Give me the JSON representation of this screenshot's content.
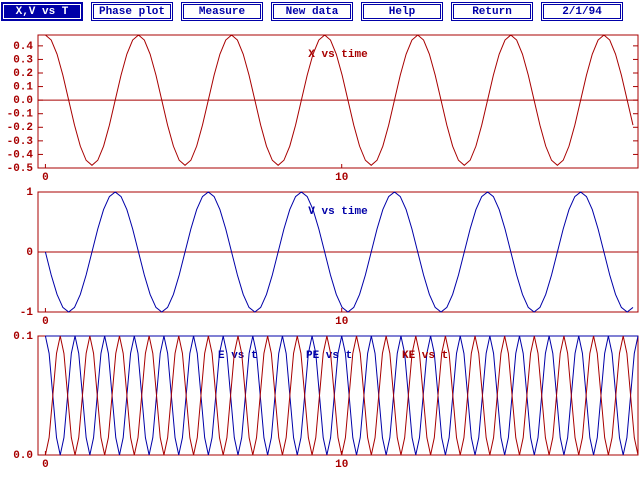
{
  "menu": {
    "buttons": [
      {
        "label": "X,V vs T",
        "selected": true
      },
      {
        "label": "Phase plot"
      },
      {
        "label": "Measure"
      },
      {
        "label": "New data"
      },
      {
        "label": "Help"
      },
      {
        "label": "Return"
      },
      {
        "label": "2/1/94"
      }
    ]
  },
  "chart_data": [
    {
      "type": "line",
      "title": "X vs time",
      "title_color": "#a80000",
      "color": "#a80000",
      "xlim": [
        -0.25,
        20
      ],
      "xticks": [
        0,
        10
      ],
      "ylim": [
        -0.5,
        0.48
      ],
      "yticks": [
        0.4,
        0.3,
        0.2,
        0.1,
        {
          "value": 0,
          "label": "0.0"
        },
        -0.1,
        -0.2,
        -0.3,
        -0.4,
        -0.5
      ],
      "zero_line": true,
      "x": [
        0,
        0.196,
        0.393,
        0.589,
        0.785,
        0.982,
        1.178,
        1.374,
        1.571,
        1.767,
        1.963,
        2.16,
        2.356,
        2.553,
        2.749,
        2.945,
        3.142,
        3.338,
        3.534,
        3.731,
        3.927,
        4.123,
        4.32,
        4.516,
        4.712,
        4.909,
        5.105,
        5.301,
        5.498,
        5.694,
        5.89,
        6.087,
        6.283,
        6.48,
        6.676,
        6.872,
        7.069,
        7.265,
        7.461,
        7.658,
        7.854,
        8.05,
        8.247,
        8.443,
        8.639,
        8.836,
        9.032,
        9.228,
        9.425,
        9.621,
        9.817,
        10.014,
        10.21,
        10.407,
        10.603,
        10.799,
        10.996,
        11.192,
        11.388,
        11.585,
        11.781,
        11.977,
        12.174,
        12.37,
        12.566,
        12.763,
        12.959,
        13.155,
        13.352,
        13.548,
        13.744,
        13.941,
        14.137,
        14.334,
        14.53,
        14.726,
        14.923,
        15.119,
        15.315,
        15.512,
        15.708,
        15.904,
        16.101,
        16.297,
        16.493,
        16.69,
        16.886,
        17.082,
        17.279,
        17.475,
        17.671,
        17.868,
        18.064,
        18.261,
        18.457,
        18.653,
        18.85,
        19.046,
        19.242,
        19.439,
        19.635,
        19.831
      ],
      "values": [
        0.48,
        0.443,
        0.339,
        0.184,
        0,
        -0.184,
        -0.339,
        -0.443,
        -0.48,
        -0.443,
        -0.339,
        -0.184,
        0,
        0.184,
        0.339,
        0.443,
        0.48,
        0.443,
        0.339,
        0.184,
        0,
        -0.184,
        -0.339,
        -0.443,
        -0.48,
        -0.443,
        -0.339,
        -0.184,
        0,
        0.184,
        0.339,
        0.443,
        0.48,
        0.443,
        0.339,
        0.184,
        0,
        -0.184,
        -0.339,
        -0.443,
        -0.48,
        -0.443,
        -0.339,
        -0.184,
        0,
        0.184,
        0.339,
        0.443,
        0.48,
        0.443,
        0.339,
        0.184,
        0,
        -0.184,
        -0.339,
        -0.443,
        -0.48,
        -0.443,
        -0.339,
        -0.184,
        0,
        0.184,
        0.339,
        0.443,
        0.48,
        0.443,
        0.339,
        0.184,
        0,
        -0.184,
        -0.339,
        -0.443,
        -0.48,
        -0.443,
        -0.339,
        -0.184,
        0,
        0.184,
        0.339,
        0.443,
        0.48,
        0.443,
        0.339,
        0.184,
        0,
        -0.184,
        -0.339,
        -0.443,
        -0.48,
        -0.443,
        -0.339,
        -0.184,
        0,
        0.184,
        0.339,
        0.443,
        0.48,
        0.443,
        0.339,
        0.184,
        0,
        -0.184
      ]
    },
    {
      "type": "line",
      "title": "V vs time",
      "title_color": "#0000a8",
      "color": "#0000a8",
      "xlim": [
        -0.25,
        20
      ],
      "xticks": [
        0,
        10
      ],
      "ylim": [
        -1,
        1
      ],
      "yticks": [
        1,
        0,
        -1
      ],
      "zero_line": true,
      "x": [
        0,
        0.196,
        0.393,
        0.589,
        0.785,
        0.982,
        1.178,
        1.374,
        1.571,
        1.767,
        1.963,
        2.16,
        2.356,
        2.553,
        2.749,
        2.945,
        3.142,
        3.338,
        3.534,
        3.731,
        3.927,
        4.123,
        4.32,
        4.516,
        4.712,
        4.909,
        5.105,
        5.301,
        5.498,
        5.694,
        5.89,
        6.087,
        6.283,
        6.48,
        6.676,
        6.872,
        7.069,
        7.265,
        7.461,
        7.658,
        7.854,
        8.05,
        8.247,
        8.443,
        8.639,
        8.836,
        9.032,
        9.228,
        9.425,
        9.621,
        9.817,
        10.014,
        10.21,
        10.407,
        10.603,
        10.799,
        10.996,
        11.192,
        11.388,
        11.585,
        11.781,
        11.977,
        12.174,
        12.37,
        12.566,
        12.763,
        12.959,
        13.155,
        13.352,
        13.548,
        13.744,
        13.941,
        14.137,
        14.334,
        14.53,
        14.726,
        14.923,
        15.119,
        15.315,
        15.512,
        15.708,
        15.904,
        16.101,
        16.297,
        16.493,
        16.69,
        16.886,
        17.082,
        17.279,
        17.475,
        17.671,
        17.868,
        18.064,
        18.261,
        18.457,
        18.653,
        18.85,
        19.046,
        19.242,
        19.439,
        19.635,
        19.831
      ],
      "values": [
        0,
        -0.383,
        -0.707,
        -0.924,
        -1,
        -0.924,
        -0.707,
        -0.383,
        0,
        0.383,
        0.707,
        0.924,
        1,
        0.924,
        0.707,
        0.383,
        0,
        -0.383,
        -0.707,
        -0.924,
        -1,
        -0.924,
        -0.707,
        -0.383,
        0,
        0.383,
        0.707,
        0.924,
        1,
        0.924,
        0.707,
        0.383,
        0,
        -0.383,
        -0.707,
        -0.924,
        -1,
        -0.924,
        -0.707,
        -0.383,
        0,
        0.383,
        0.707,
        0.924,
        1,
        0.924,
        0.707,
        0.383,
        0,
        -0.383,
        -0.707,
        -0.924,
        -1,
        -0.924,
        -0.707,
        -0.383,
        0,
        0.383,
        0.707,
        0.924,
        1,
        0.924,
        0.707,
        0.383,
        0,
        -0.383,
        -0.707,
        -0.924,
        -1,
        -0.924,
        -0.707,
        -0.383,
        0,
        0.383,
        0.707,
        0.924,
        1,
        0.924,
        0.707,
        0.383,
        0,
        -0.383,
        -0.707,
        -0.924,
        -1,
        -0.924,
        -0.707,
        -0.383,
        0,
        0.383,
        0.707,
        0.924,
        1,
        0.924,
        0.707,
        0.383,
        0,
        -0.383,
        -0.707,
        -0.924,
        -1,
        -0.924
      ]
    },
    {
      "type": "line",
      "xlim": [
        -0.25,
        20
      ],
      "xticks": [
        0,
        10
      ],
      "ylim": [
        0,
        0.1
      ],
      "yticks": [
        0.1,
        {
          "value": 0,
          "label": "0.0"
        }
      ],
      "x": [
        0,
        0.125,
        0.25,
        0.375,
        0.5,
        0.625,
        0.75,
        0.875,
        1,
        1.125,
        1.25,
        1.375,
        1.5,
        1.625,
        1.75,
        1.875,
        2,
        2.125,
        2.25,
        2.375,
        2.5,
        2.625,
        2.75,
        2.875,
        3,
        3.125,
        3.25,
        3.375,
        3.5,
        3.625,
        3.75,
        3.875,
        4,
        4.125,
        4.25,
        4.375,
        4.5,
        4.625,
        4.75,
        4.875,
        5,
        5.125,
        5.25,
        5.375,
        5.5,
        5.625,
        5.75,
        5.875,
        6,
        6.125,
        6.25,
        6.375,
        6.5,
        6.625,
        6.75,
        6.875,
        7,
        7.125,
        7.25,
        7.375,
        7.5,
        7.625,
        7.75,
        7.875,
        8,
        8.125,
        8.25,
        8.375,
        8.5,
        8.625,
        8.75,
        8.875,
        9,
        9.125,
        9.25,
        9.375,
        9.5,
        9.625,
        9.75,
        9.875,
        10,
        10.125,
        10.25,
        10.375,
        10.5,
        10.625,
        10.75,
        10.875,
        11,
        11.125,
        11.25,
        11.375,
        11.5,
        11.625,
        11.75,
        11.875,
        12,
        12.125,
        12.25,
        12.375,
        12.5,
        12.625,
        12.75,
        12.875,
        13,
        13.125,
        13.25,
        13.375,
        13.5,
        13.625,
        13.75,
        13.875,
        14,
        14.125,
        14.25,
        14.375,
        14.5,
        14.625,
        14.75,
        14.875,
        15,
        15.125,
        15.25,
        15.375,
        15.5,
        15.625,
        15.75,
        15.875,
        16,
        16.125,
        16.25,
        16.375,
        16.5,
        16.625,
        16.75,
        16.875,
        17,
        17.125,
        17.25,
        17.375,
        17.5,
        17.625,
        17.75,
        17.875,
        18,
        18.125,
        18.25,
        18.375,
        18.5,
        18.625,
        18.75,
        18.875,
        19,
        19.125,
        19.25,
        19.375,
        19.5,
        19.625,
        19.75,
        19.875,
        20
      ],
      "series": [
        {
          "name": "E vs t",
          "color": "#0000a8",
          "x": [
            0,
            20
          ],
          "values": [
            0.1,
            0.1
          ]
        },
        {
          "name": "PE vs t",
          "color": "#0000a8",
          "values": [
            0.1,
            0.0854,
            0.05,
            0.0146,
            0,
            0.0146,
            0.05,
            0.0854,
            0.1,
            0.0854,
            0.05,
            0.0146,
            0,
            0.0146,
            0.05,
            0.0854,
            0.1,
            0.0854,
            0.05,
            0.0146,
            0,
            0.0146,
            0.05,
            0.0854,
            0.1,
            0.0854,
            0.05,
            0.0146,
            0,
            0.0146,
            0.05,
            0.0854,
            0.1,
            0.0854,
            0.05,
            0.0146,
            0,
            0.0146,
            0.05,
            0.0854,
            0.1,
            0.0854,
            0.05,
            0.0146,
            0,
            0.0146,
            0.05,
            0.0854,
            0.1,
            0.0854,
            0.05,
            0.0146,
            0,
            0.0146,
            0.05,
            0.0854,
            0.1,
            0.0854,
            0.05,
            0.0146,
            0,
            0.0146,
            0.05,
            0.0854,
            0.1,
            0.0854,
            0.05,
            0.0146,
            0,
            0.0146,
            0.05,
            0.0854,
            0.1,
            0.0854,
            0.05,
            0.0146,
            0,
            0.0146,
            0.05,
            0.0854,
            0.1,
            0.0854,
            0.05,
            0.0146,
            0,
            0.0146,
            0.05,
            0.0854,
            0.1,
            0.0854,
            0.05,
            0.0146,
            0,
            0.0146,
            0.05,
            0.0854,
            0.1,
            0.0854,
            0.05,
            0.0146,
            0,
            0.0146,
            0.05,
            0.0854,
            0.1,
            0.0854,
            0.05,
            0.0146,
            0,
            0.0146,
            0.05,
            0.0854,
            0.1,
            0.0854,
            0.05,
            0.0146,
            0,
            0.0146,
            0.05,
            0.0854,
            0.1,
            0.0854,
            0.05,
            0.0146,
            0,
            0.0146,
            0.05,
            0.0854,
            0.1,
            0.0854,
            0.05,
            0.0146,
            0,
            0.0146,
            0.05,
            0.0854,
            0.1,
            0.0854,
            0.05,
            0.0146,
            0,
            0.0146,
            0.05,
            0.0854,
            0.1,
            0.0854,
            0.05,
            0.0146,
            0,
            0.0146,
            0.05,
            0.0854,
            0.1,
            0.0854,
            0.05,
            0.0146,
            0,
            0.0146,
            0.05,
            0.0854,
            0.1
          ]
        },
        {
          "name": "KE vs t",
          "color": "#a80000",
          "values": [
            0,
            0.0146,
            0.05,
            0.0854,
            0.1,
            0.0854,
            0.05,
            0.0146,
            0,
            0.0146,
            0.05,
            0.0854,
            0.1,
            0.0854,
            0.05,
            0.0146,
            0,
            0.0146,
            0.05,
            0.0854,
            0.1,
            0.0854,
            0.05,
            0.0146,
            0,
            0.0146,
            0.05,
            0.0854,
            0.1,
            0.0854,
            0.05,
            0.0146,
            0,
            0.0146,
            0.05,
            0.0854,
            0.1,
            0.0854,
            0.05,
            0.0146,
            0,
            0.0146,
            0.05,
            0.0854,
            0.1,
            0.0854,
            0.05,
            0.0146,
            0,
            0.0146,
            0.05,
            0.0854,
            0.1,
            0.0854,
            0.05,
            0.0146,
            0,
            0.0146,
            0.05,
            0.0854,
            0.1,
            0.0854,
            0.05,
            0.0146,
            0,
            0.0146,
            0.05,
            0.0854,
            0.1,
            0.0854,
            0.05,
            0.0146,
            0,
            0.0146,
            0.05,
            0.0854,
            0.1,
            0.0854,
            0.05,
            0.0146,
            0,
            0.0146,
            0.05,
            0.0854,
            0.1,
            0.0854,
            0.05,
            0.0146,
            0,
            0.0146,
            0.05,
            0.0854,
            0.1,
            0.0854,
            0.05,
            0.0146,
            0,
            0.0146,
            0.05,
            0.0854,
            0.1,
            0.0854,
            0.05,
            0.0146,
            0,
            0.0146,
            0.05,
            0.0854,
            0.1,
            0.0854,
            0.05,
            0.0146,
            0,
            0.0146,
            0.05,
            0.0854,
            0.1,
            0.0854,
            0.05,
            0.0146,
            0,
            0.0146,
            0.05,
            0.0854,
            0.1,
            0.0854,
            0.05,
            0.0146,
            0,
            0.0146,
            0.05,
            0.0854,
            0.1,
            0.0854,
            0.05,
            0.0146,
            0,
            0.0146,
            0.05,
            0.0854,
            0.1,
            0.0854,
            0.05,
            0.0146,
            0,
            0.0146,
            0.05,
            0.0854,
            0.1,
            0.0854,
            0.05,
            0.0146,
            0,
            0.0146,
            0.05,
            0.0854,
            0.1,
            0.0854,
            0.05,
            0.0146,
            0
          ]
        }
      ]
    }
  ]
}
